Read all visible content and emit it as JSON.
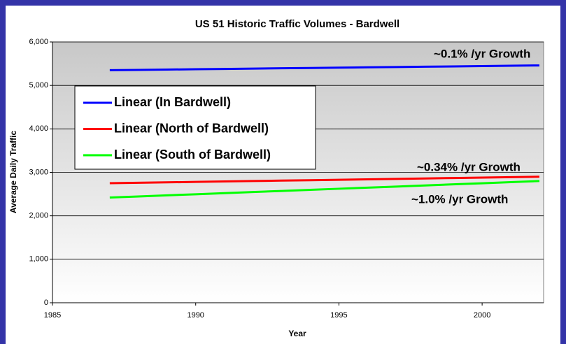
{
  "chart_data": {
    "type": "line",
    "title": "US 51 Historic Traffic Volumes - Bardwell",
    "xlabel": "Year",
    "ylabel": "Average Daily Traffic",
    "x": [
      1987,
      1988,
      1989,
      1990,
      1991,
      1992,
      1993,
      1994,
      1995,
      1996,
      1997,
      1998,
      1999,
      2000,
      2001,
      2002
    ],
    "series": [
      {
        "name": "Linear (In Bardwell)",
        "color": "#0000ff",
        "values": [
          5350,
          5357,
          5365,
          5372,
          5379,
          5387,
          5394,
          5401,
          5409,
          5416,
          5423,
          5431,
          5438,
          5445,
          5453,
          5460
        ]
      },
      {
        "name": "Linear (North of Bardwell)",
        "color": "#ff0000",
        "values": [
          2750,
          2760,
          2770,
          2780,
          2790,
          2800,
          2810,
          2820,
          2830,
          2840,
          2850,
          2860,
          2870,
          2880,
          2890,
          2900
        ]
      },
      {
        "name": "Linear (South of Bardwell)",
        "color": "#00ff00",
        "values": [
          2420,
          2445,
          2471,
          2496,
          2521,
          2547,
          2572,
          2597,
          2623,
          2648,
          2673,
          2699,
          2724,
          2749,
          2775,
          2800
        ]
      }
    ],
    "annotations": [
      "~0.1% /yr Growth",
      "~0.34% /yr Growth",
      "~1.0% /yr Growth"
    ],
    "xlim": [
      1985,
      2002
    ],
    "xticks": [
      1985,
      1990,
      1995,
      2000
    ],
    "ylim": [
      0,
      6000
    ],
    "yticks": [
      0,
      {
        "value": 1000,
        "label": "1,000"
      },
      {
        "value": 2000,
        "label": "2,000"
      },
      {
        "value": 3000,
        "label": "3,000"
      },
      {
        "value": 4000,
        "label": "4,000"
      },
      {
        "value": 5000,
        "label": "5,000"
      },
      {
        "value": 6000,
        "label": "6,000"
      }
    ],
    "grid": true,
    "legend": "upper left"
  }
}
